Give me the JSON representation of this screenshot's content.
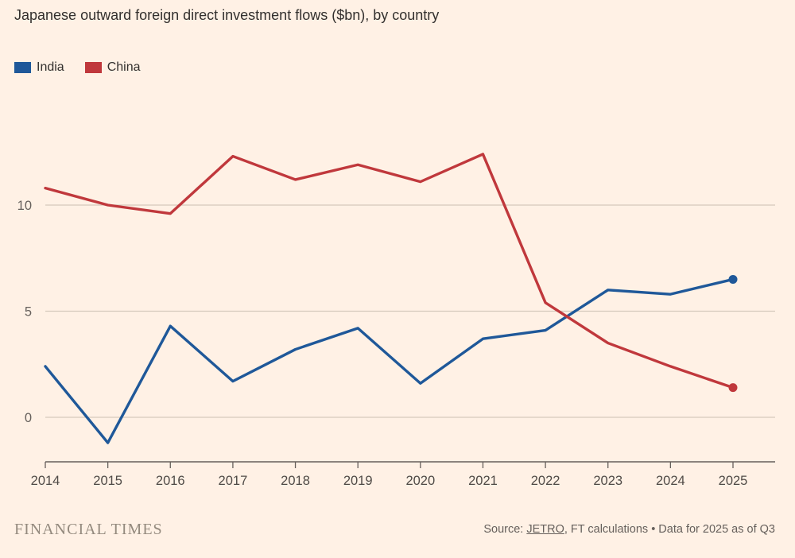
{
  "title": "Japanese outward foreign direct investment flows ($bn), by country",
  "colors": {
    "background": "#fff1e5",
    "india_blue": "#1f5899",
    "china_red": "#c0383c",
    "gridline": "#d5c9bc",
    "axis": "#66605c",
    "tick_label": "#66605c",
    "x_label": "#4f4a46",
    "title_text": "#33302e",
    "brand_text": "#948a7e"
  },
  "chart_data": {
    "type": "line",
    "title": "Japanese outward foreign direct investment flows ($bn), by country",
    "xlabel": "",
    "ylabel": "",
    "x": [
      2014,
      2015,
      2016,
      2017,
      2018,
      2019,
      2020,
      2021,
      2022,
      2023,
      2024,
      2025
    ],
    "series": [
      {
        "name": "India",
        "color": "#1f5899",
        "values": [
          2.4,
          -1.2,
          4.3,
          1.7,
          3.2,
          4.2,
          1.6,
          3.7,
          4.1,
          6.0,
          5.8,
          6.5
        ],
        "endpoint_dot": true
      },
      {
        "name": "China",
        "color": "#c0383c",
        "values": [
          10.8,
          10.0,
          9.6,
          12.3,
          11.2,
          11.9,
          11.1,
          12.4,
          5.4,
          3.5,
          2.4,
          1.4
        ],
        "endpoint_dot": true
      }
    ],
    "yticks": [
      0,
      5,
      10
    ],
    "ylim": [
      -2,
      13.5
    ],
    "grid": true,
    "legend_position": "top-left"
  },
  "footer": {
    "brand": "FINANCIAL TIMES",
    "source_prefix": "Source: ",
    "source_link": "JETRO",
    "source_suffix": ", FT calculations • Data for 2025 as of Q3"
  }
}
